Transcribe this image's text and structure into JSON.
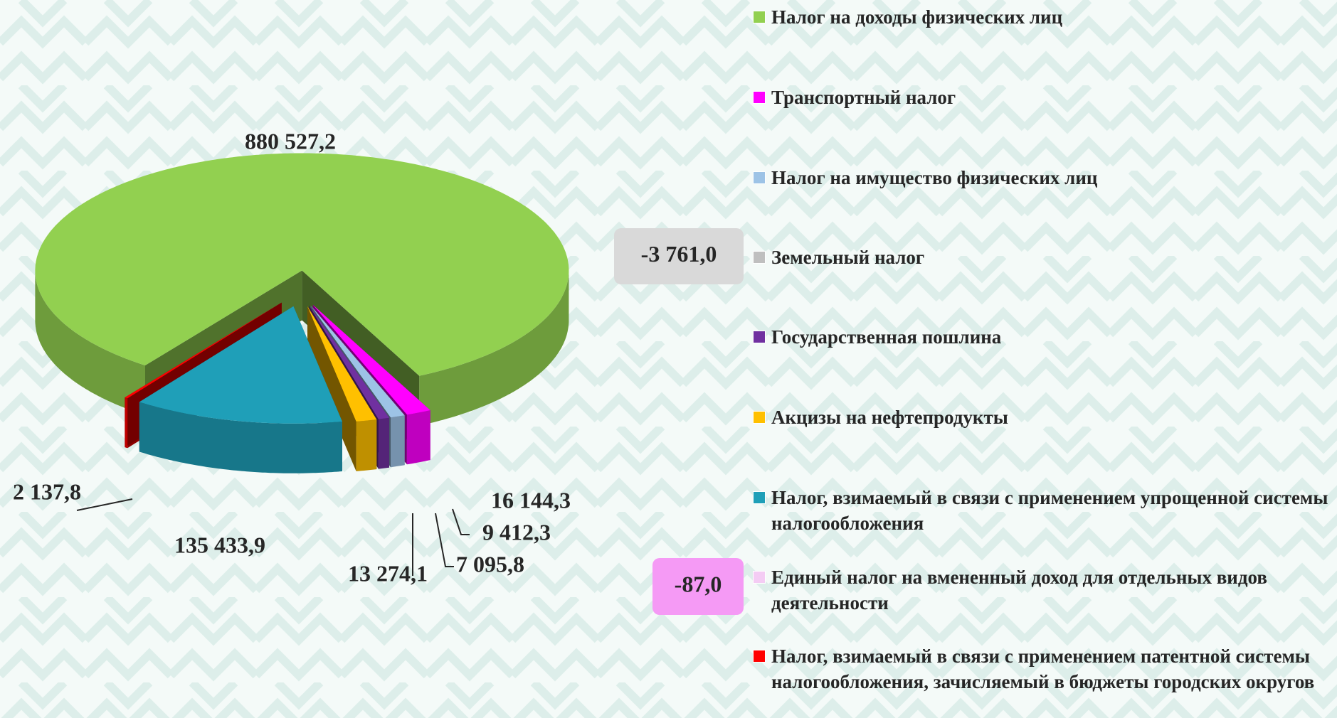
{
  "chart_data": {
    "type": "pie",
    "categories": [
      "Налог на доходы физических лиц",
      "Транспортный налог",
      "Налог на имущество физических лиц",
      "Земельный налог",
      "Государственная пошлина",
      "Акцизы на нефтепродукты",
      "Налог, взимаемый в связи с применением упрощенной системы налогообложения",
      "Единый налог на вмененный доход для отдельных видов деятельности",
      "Налог, взимаемый в связи с применением патентной системы налогообложения, зачисляемый в бюджеты городских округов"
    ],
    "values": [
      880527.2,
      16144.3,
      9412.3,
      -3761.0,
      7095.8,
      13274.1,
      135433.9,
      -87.0,
      2137.8
    ],
    "value_labels": [
      "880 527,2",
      "16 144,3",
      "9 412,3",
      "-3 761,0",
      "7 095,8",
      "13 274,1",
      "135 433,9",
      "-87,0",
      "2 137,8"
    ],
    "colors": [
      "#92d050",
      "#ff00ff",
      "#9dc3e6",
      "#bfbfbf",
      "#7030a0",
      "#ffc000",
      "#1f9fb8",
      "#f4ccf4",
      "#ff0000"
    ],
    "legend": "right"
  }
}
